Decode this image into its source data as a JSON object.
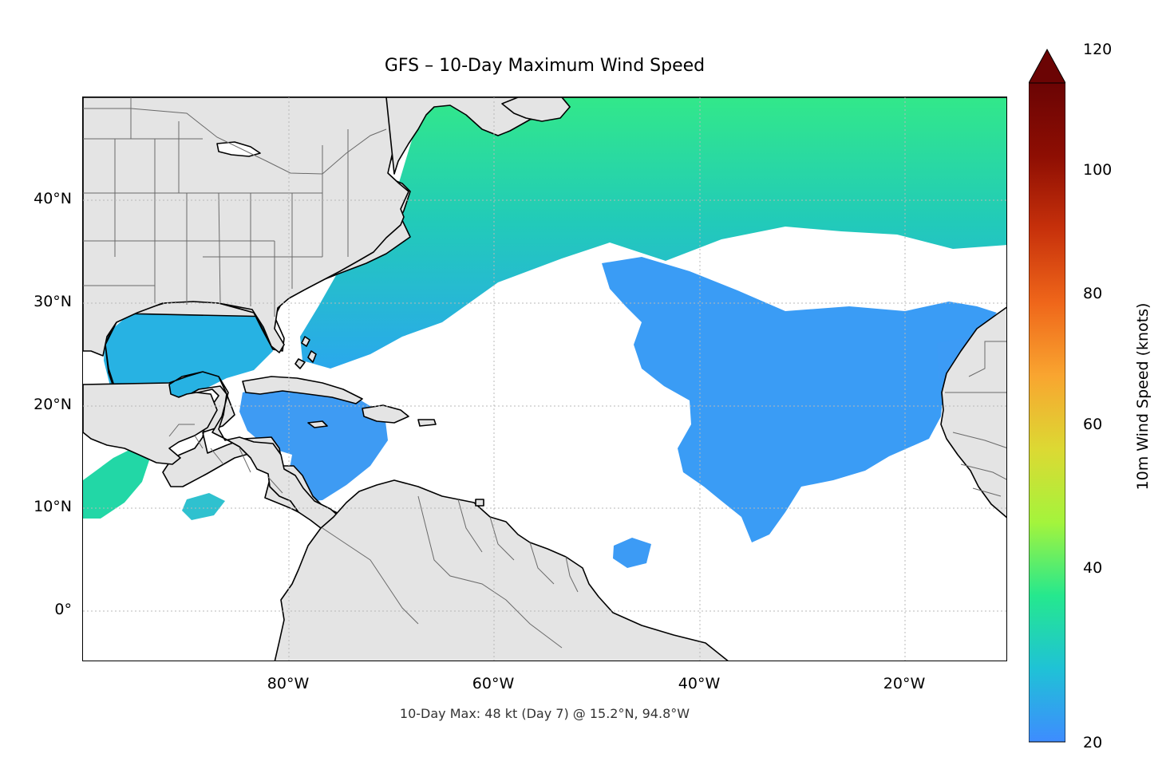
{
  "title": "GFS – 10-Day Maximum Wind Speed",
  "footer": "10-Day Max: 48 kt (Day 7) @ 15.2°N, 94.8°W",
  "map": {
    "lon_range": [
      -100,
      -10
    ],
    "lat_range": [
      -5,
      50
    ],
    "land_color": "#e4e4e4",
    "ocean_color": "#ffffff",
    "grid_style": "dotted",
    "lat_ticks": [
      {
        "value": 40,
        "label": "40°N"
      },
      {
        "value": 30,
        "label": "30°N"
      },
      {
        "value": 20,
        "label": "20°N"
      },
      {
        "value": 10,
        "label": "10°N"
      },
      {
        "value": 0,
        "label": "0°"
      }
    ],
    "lon_ticks": [
      {
        "value": -80,
        "label": "80°W"
      },
      {
        "value": -60,
        "label": "60°W"
      },
      {
        "value": -40,
        "label": "40°W"
      },
      {
        "value": -20,
        "label": "20°W"
      }
    ]
  },
  "colorbar": {
    "label": "10m Wind Speed (knots)",
    "range": [
      20,
      120
    ],
    "extend": "max",
    "ticks": [
      {
        "value": 20,
        "label": "20"
      },
      {
        "value": 40,
        "label": "40"
      },
      {
        "value": 60,
        "label": "60"
      },
      {
        "value": 80,
        "label": "80"
      },
      {
        "value": 100,
        "label": "100"
      },
      {
        "value": 120,
        "label": "120"
      }
    ],
    "colors": [
      "#3e8cff",
      "#1fc2d6",
      "#25e88e",
      "#a4f43c",
      "#dcd933",
      "#f9a530",
      "#ef661a",
      "#c7310b",
      "#8e0e03",
      "#6b0404"
    ]
  }
}
